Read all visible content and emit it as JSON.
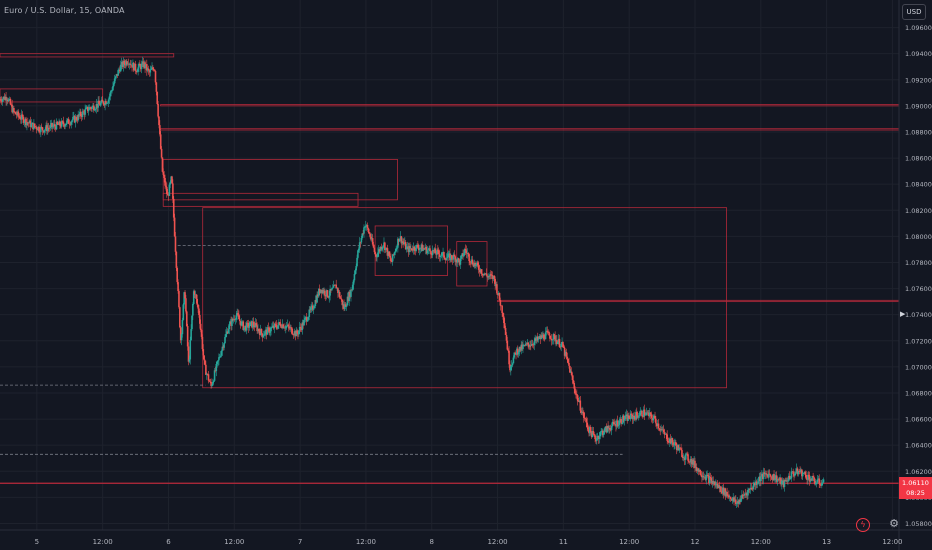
{
  "header": {
    "symbol_title": "Euro / U.S. Dollar, 15, OANDA"
  },
  "toolbar": {
    "currency_label": "USD"
  },
  "icons": {
    "flash": "flash-icon",
    "settings": "gear-icon"
  },
  "colors": {
    "bull": "#26a69a",
    "bear": "#ef5350",
    "zone": "#b2293a",
    "background": "#131722"
  },
  "current_price": {
    "price": "1.06110",
    "countdown": "08:25"
  },
  "chart_data": {
    "type": "candlestick",
    "title": "",
    "xlabel": "",
    "ylabel": "",
    "ylim": [
      1.0575,
      1.0975
    ],
    "grid": true,
    "y_ticks": [
      "1.09600",
      "1.09400",
      "1.09200",
      "1.09000",
      "1.08800",
      "1.08600",
      "1.08400",
      "1.08200",
      "1.08000",
      "1.07800",
      "1.07600",
      "1.07400",
      "1.07200",
      "1.07000",
      "1.06800",
      "1.06600",
      "1.06400",
      "1.06200",
      "1.06000",
      "1.05800"
    ],
    "x_ticks": [
      "5",
      "12:00",
      "6",
      "12:00",
      "7",
      "12:00",
      "8",
      "12:00",
      "11",
      "12:00",
      "12",
      "12:00",
      "13",
      "12:00"
    ],
    "x_tick_positions": [
      0.5,
      1.0,
      1.5,
      2.0,
      2.5,
      3.0,
      3.5,
      4.0,
      4.5,
      5.0,
      5.5,
      6.0,
      6.5,
      7.0
    ],
    "x_range": [
      0.22,
      7.05
    ],
    "series": [
      {
        "path": [
          [
            0.22,
            1.0905
          ],
          [
            0.28,
            1.0907
          ],
          [
            0.33,
            1.0895
          ],
          [
            0.4,
            1.089
          ],
          [
            0.47,
            1.0885
          ],
          [
            0.55,
            1.0882
          ],
          [
            0.62,
            1.0884
          ],
          [
            0.7,
            1.0886
          ],
          [
            0.8,
            1.089
          ],
          [
            0.9,
            1.0898
          ],
          [
            1.0,
            1.0902
          ],
          [
            1.05,
            1.0905
          ],
          [
            1.1,
            1.092
          ],
          [
            1.14,
            1.093
          ],
          [
            1.2,
            1.0935
          ],
          [
            1.26,
            1.0928
          ],
          [
            1.32,
            1.0932
          ],
          [
            1.36,
            1.0925
          ],
          [
            1.4,
            1.093
          ],
          [
            1.42,
            1.0905
          ],
          [
            1.46,
            1.085
          ],
          [
            1.5,
            1.083
          ],
          [
            1.53,
            1.0845
          ],
          [
            1.56,
            1.079
          ],
          [
            1.6,
            1.072
          ],
          [
            1.63,
            1.076
          ],
          [
            1.66,
            1.07
          ],
          [
            1.7,
            1.076
          ],
          [
            1.74,
            1.074
          ],
          [
            1.78,
            1.07
          ],
          [
            1.83,
            1.0685
          ],
          [
            1.9,
            1.071
          ],
          [
            1.96,
            1.073
          ],
          [
            2.02,
            1.074
          ],
          [
            2.08,
            1.073
          ],
          [
            2.15,
            1.0733
          ],
          [
            2.22,
            1.0725
          ],
          [
            2.3,
            1.073
          ],
          [
            2.36,
            1.0733
          ],
          [
            2.42,
            1.073
          ],
          [
            2.48,
            1.0725
          ],
          [
            2.54,
            1.0735
          ],
          [
            2.6,
            1.0745
          ],
          [
            2.66,
            1.076
          ],
          [
            2.72,
            1.0755
          ],
          [
            2.78,
            1.0762
          ],
          [
            2.84,
            1.0745
          ],
          [
            2.9,
            1.076
          ],
          [
            2.95,
            1.079
          ],
          [
            3.0,
            1.081
          ],
          [
            3.04,
            1.08
          ],
          [
            3.08,
            1.0785
          ],
          [
            3.14,
            1.0795
          ],
          [
            3.2,
            1.078
          ],
          [
            3.26,
            1.08
          ],
          [
            3.32,
            1.079
          ],
          [
            3.4,
            1.0792
          ],
          [
            3.46,
            1.079
          ],
          [
            3.52,
            1.0788
          ],
          [
            3.58,
            1.0786
          ],
          [
            3.62,
            1.0784
          ],
          [
            3.68,
            1.0784
          ],
          [
            3.72,
            1.078
          ],
          [
            3.76,
            1.079
          ],
          [
            3.8,
            1.0782
          ],
          [
            3.86,
            1.0776
          ],
          [
            3.92,
            1.077
          ],
          [
            3.98,
            1.0768
          ],
          [
            4.05,
            1.074
          ],
          [
            4.1,
            1.07
          ],
          [
            4.15,
            1.0712
          ],
          [
            4.22,
            1.0716
          ],
          [
            4.3,
            1.072
          ],
          [
            4.38,
            1.0725
          ],
          [
            4.44,
            1.0722
          ],
          [
            4.5,
            1.0716
          ],
          [
            4.55,
            1.07
          ],
          [
            4.6,
            1.068
          ],
          [
            4.65,
            1.0665
          ],
          [
            4.7,
            1.0652
          ],
          [
            4.75,
            1.0645
          ],
          [
            4.8,
            1.065
          ],
          [
            4.88,
            1.0655
          ],
          [
            4.96,
            1.066
          ],
          [
            5.04,
            1.0662
          ],
          [
            5.12,
            1.0665
          ],
          [
            5.2,
            1.066
          ],
          [
            5.26,
            1.065
          ],
          [
            5.3,
            1.0645
          ],
          [
            5.36,
            1.064
          ],
          [
            5.42,
            1.0632
          ],
          [
            5.48,
            1.0628
          ],
          [
            5.54,
            1.062
          ],
          [
            5.6,
            1.0615
          ],
          [
            5.66,
            1.061
          ],
          [
            5.72,
            1.0605
          ],
          [
            5.78,
            1.06
          ],
          [
            5.82,
            1.0595
          ],
          [
            5.88,
            1.0602
          ],
          [
            5.94,
            1.0608
          ],
          [
            6.0,
            1.0615
          ],
          [
            6.06,
            1.0618
          ],
          [
            6.12,
            1.0615
          ],
          [
            6.18,
            1.061
          ],
          [
            6.24,
            1.0618
          ],
          [
            6.3,
            1.062
          ],
          [
            6.36,
            1.0616
          ],
          [
            6.42,
            1.0612
          ],
          [
            6.48,
            1.0611
          ]
        ]
      }
    ],
    "zones": [
      {
        "x0": 0.22,
        "x1": 1.54,
        "y0": 1.09375,
        "y1": 1.094
      },
      {
        "x0": 0.22,
        "x1": 1.0,
        "y0": 1.0903,
        "y1": 1.0913
      },
      {
        "x0": 1.44,
        "x1": 7.05,
        "y0": 1.09,
        "y1": 1.0901
      },
      {
        "x0": 1.44,
        "x1": 7.05,
        "y0": 1.08815,
        "y1": 1.08825
      },
      {
        "x0": 1.46,
        "x1": 3.24,
        "y0": 1.0828,
        "y1": 1.0859
      },
      {
        "x0": 1.46,
        "x1": 2.94,
        "y0": 1.0823,
        "y1": 1.0833
      },
      {
        "x0": 1.76,
        "x1": 5.74,
        "y0": 1.0684,
        "y1": 1.0822
      },
      {
        "x0": 3.07,
        "x1": 3.62,
        "y0": 1.077,
        "y1": 1.0808
      },
      {
        "x0": 3.69,
        "x1": 3.92,
        "y0": 1.0762,
        "y1": 1.0796
      },
      {
        "x0": 4.0,
        "x1": 7.05,
        "y0": 1.075,
        "y1": 1.0751
      },
      {
        "x0": 0.22,
        "x1": 7.05,
        "y0": 1.0611,
        "y1": 1.0611
      }
    ],
    "dashed_lines": [
      {
        "x0": 1.57,
        "x1": 3.03,
        "y": 1.0793
      },
      {
        "x0": 0.22,
        "x1": 1.78,
        "y": 1.0686
      },
      {
        "x0": 0.22,
        "x1": 4.95,
        "y": 1.0633
      }
    ]
  }
}
